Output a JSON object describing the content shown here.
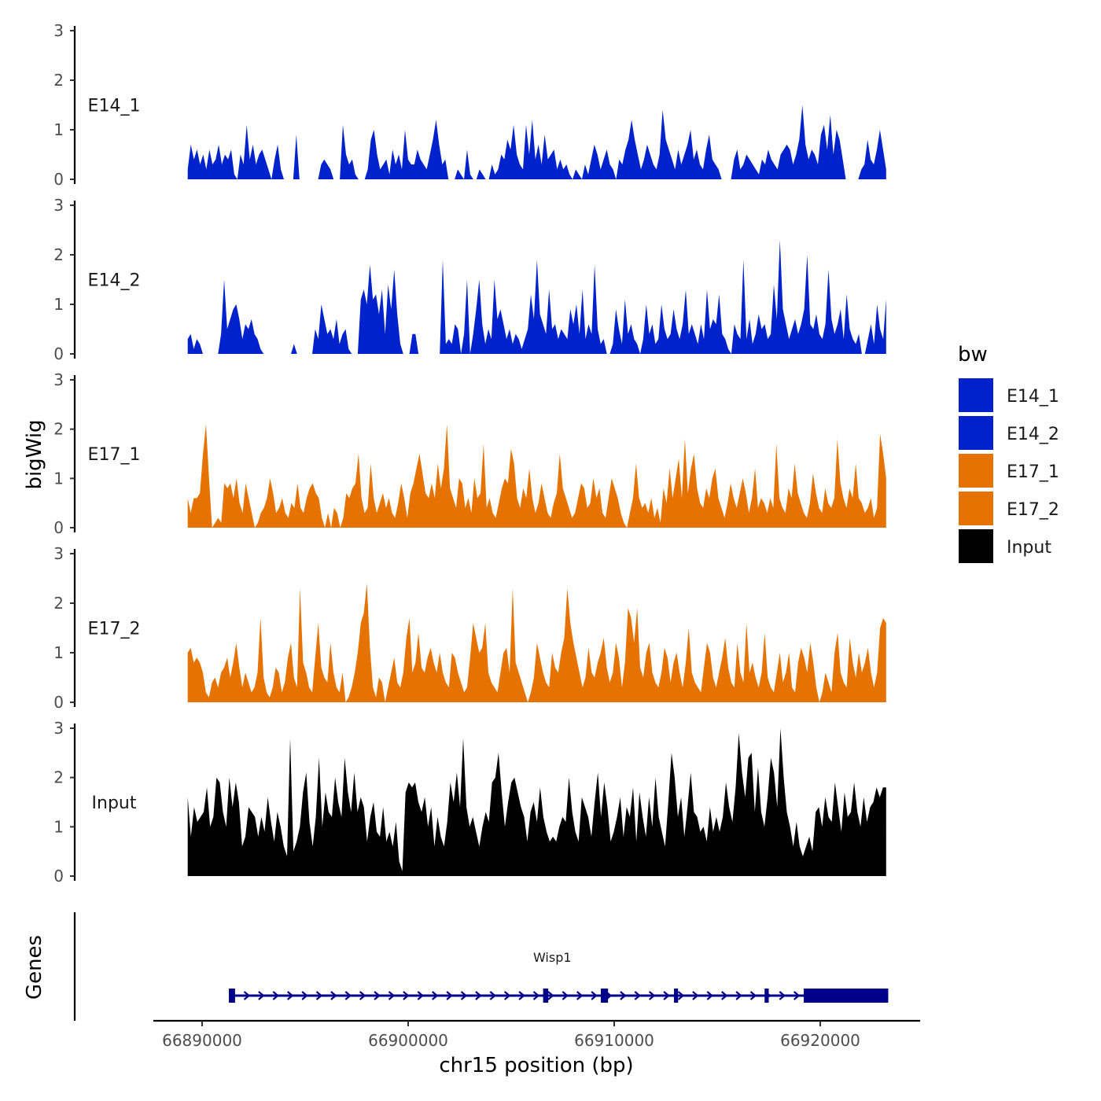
{
  "chart_data": {
    "type": "area",
    "title": "",
    "ylabel": "bigWig",
    "xlabel": "chr15 position (bp)",
    "genes_label": "Genes",
    "xlim": [
      66886500,
      66925000
    ],
    "ylim": [
      0,
      3
    ],
    "x_ticks": [
      66890000,
      66900000,
      66910000,
      66920000
    ],
    "x_tick_labels": [
      "66890000",
      "66900000",
      "66910000",
      "66920000"
    ],
    "y_ticks": [
      0,
      1,
      2,
      3
    ],
    "y_tick_labels": [
      "0",
      "1",
      "2",
      "3"
    ],
    "track_range": [
      66889300,
      66923200
    ],
    "legend": {
      "title": "bw",
      "position": "right",
      "entries": [
        {
          "label": "E14_1",
          "color": "#0022cc"
        },
        {
          "label": "E14_2",
          "color": "#0022cc"
        },
        {
          "label": "E17_1",
          "color": "#e67300"
        },
        {
          "label": "E17_2",
          "color": "#e67300"
        },
        {
          "label": "Input",
          "color": "#000000"
        }
      ]
    },
    "tracks": [
      {
        "name": "E14_1",
        "color": "#0022cc",
        "values": [
          0.2,
          0.7,
          0.4,
          0.6,
          0.3,
          0.5,
          0.2,
          0.6,
          0.3,
          0.4,
          0.7,
          0.3,
          0.5,
          0.4,
          0.6,
          0.1,
          0,
          0.5,
          0.3,
          1.1,
          0.4,
          0.7,
          0.3,
          0.5,
          0.6,
          0.4,
          0.2,
          0,
          0.4,
          0.7,
          0.2,
          0,
          0,
          0,
          0,
          0.9,
          0,
          0,
          0,
          0,
          0,
          0,
          0,
          0.3,
          0.4,
          0.3,
          0.2,
          0,
          0,
          0,
          1.1,
          0.5,
          0.3,
          0.4,
          0.1,
          0,
          0,
          0,
          0.2,
          0.8,
          1.0,
          0.5,
          0.2,
          0.3,
          0.4,
          0.1,
          0.6,
          0.3,
          0.5,
          0.2,
          1.0,
          0.4,
          0.3,
          0.3,
          0.6,
          0.4,
          0.3,
          0.2,
          0.5,
          0.8,
          1.2,
          0.7,
          0.3,
          0.4,
          0,
          0,
          0,
          0.2,
          0.1,
          0,
          0.6,
          0.1,
          0,
          0,
          0.2,
          0.1,
          0,
          0,
          0.3,
          0.1,
          0.2,
          0.5,
          0.4,
          0.8,
          0.6,
          1.1,
          0.5,
          0.3,
          0.2,
          1.1,
          0.5,
          1.2,
          0.4,
          0.7,
          0.3,
          0.9,
          0.4,
          0.5,
          0.6,
          0.2,
          0.4,
          0.2,
          0.3,
          0.1,
          0,
          0.2,
          0.1,
          0,
          0.3,
          0.1,
          0.4,
          0.7,
          0.5,
          0.2,
          0.4,
          0.6,
          0.3,
          0.2,
          0,
          0.4,
          0.3,
          0.6,
          0.8,
          1.2,
          0.8,
          0.5,
          0.2,
          0.4,
          0.7,
          0.5,
          0.3,
          0.2,
          0.5,
          1.4,
          0.8,
          0.6,
          0.4,
          0.2,
          0.6,
          0.3,
          0.5,
          0.7,
          1.0,
          0.4,
          0.6,
          0.3,
          0.2,
          0.6,
          0.9,
          0.4,
          0.3,
          0.2,
          0,
          0,
          0,
          0,
          0.4,
          0.6,
          0.2,
          0.3,
          0.5,
          0.4,
          0.3,
          0.2,
          0.1,
          0.4,
          0.3,
          0.6,
          0.4,
          0.3,
          0.2,
          0.5,
          0.6,
          0.7,
          0.6,
          0.3,
          0.5,
          0.8,
          1.5,
          0.7,
          0.4,
          0.6,
          0.5,
          0.3,
          0.9,
          1.1,
          0.6,
          1.3,
          0.5,
          1.0,
          0.8,
          0.4,
          0,
          0,
          0,
          0,
          0,
          0.2,
          0.3,
          0.8,
          0.4,
          0.3,
          0.6,
          1.0,
          0.6,
          0.2
        ]
      },
      {
        "name": "E14_2",
        "color": "#0022cc",
        "values": [
          0.3,
          0.4,
          0.1,
          0.3,
          0.2,
          0,
          0,
          0,
          0,
          0,
          0,
          0.4,
          1.5,
          0.5,
          0.7,
          0.9,
          1.0,
          0.7,
          0.3,
          0.6,
          0.5,
          0.7,
          0.4,
          0.3,
          0.1,
          0,
          0,
          0,
          0,
          0,
          0,
          0,
          0,
          0,
          0,
          0.2,
          0,
          0,
          0,
          0,
          0,
          0,
          0.5,
          0.3,
          1.0,
          0.7,
          0.4,
          0.5,
          0.3,
          0.7,
          0.2,
          0.4,
          0.5,
          0.1,
          0,
          0,
          0,
          1.1,
          1.3,
          1.0,
          1.8,
          1.1,
          1.2,
          0.8,
          1.3,
          0.4,
          1.4,
          0.9,
          1.7,
          0.8,
          0.2,
          0,
          0,
          0,
          0.4,
          0.4,
          0,
          0,
          0,
          0,
          0,
          0,
          0,
          0,
          1.9,
          0.2,
          0.3,
          0.2,
          0.6,
          0.5,
          0,
          0.4,
          1.5,
          0,
          0.4,
          0.9,
          1.5,
          0.6,
          0.2,
          0.5,
          0.3,
          1.5,
          0.7,
          0.9,
          0.6,
          0.3,
          0.5,
          0.2,
          0.4,
          0.3,
          0.1,
          0.3,
          0.5,
          1.2,
          0.7,
          1.9,
          0.8,
          0.6,
          0.4,
          1.3,
          0.5,
          0.6,
          0.3,
          0.5,
          0.4,
          0.3,
          0.9,
          0.6,
          1.0,
          0.4,
          1.3,
          0.3,
          0.6,
          0.4,
          1.8,
          0.5,
          0.2,
          0.3,
          0,
          0,
          0.2,
          0.9,
          0.5,
          0.2,
          1.1,
          0.4,
          0.6,
          0.3,
          0.2,
          0,
          0.3,
          1.0,
          0.4,
          0.6,
          0.2,
          0.3,
          1.0,
          0.5,
          0.3,
          0.4,
          0.9,
          0.5,
          0.3,
          0.6,
          1.3,
          0.4,
          0.6,
          0.4,
          0.2,
          0.6,
          0.3,
          1.3,
          0.5,
          0.7,
          0.6,
          1.2,
          0.4,
          0.3,
          0.1,
          0,
          0.6,
          0.4,
          0.3,
          1.9,
          0.3,
          0.7,
          0.2,
          0.4,
          0.8,
          0.5,
          0.6,
          0.3,
          0.4,
          1.4,
          0.7,
          2.3,
          0.9,
          0.6,
          0.3,
          0.5,
          0.7,
          0.4,
          0.6,
          0.9,
          2.0,
          0.6,
          0.5,
          0.8,
          0.4,
          0.3,
          0.6,
          1.7,
          0.7,
          0.4,
          0.6,
          0.9,
          0.3,
          1.2,
          0.5,
          0.3,
          0.2,
          0.4,
          0,
          0,
          0.3,
          0.6,
          0.2,
          1.0,
          0.5,
          0.3,
          1.1
        ]
      },
      {
        "name": "E17_1",
        "color": "#e67300",
        "values": [
          0.6,
          0.3,
          0.6,
          0.6,
          0.7,
          1.5,
          2.1,
          1.0,
          0,
          0.1,
          0.2,
          0.1,
          0.9,
          0.8,
          0.9,
          0.6,
          1.0,
          0.5,
          0.3,
          0.9,
          0.6,
          0.3,
          0,
          0.1,
          0.3,
          0.4,
          0.6,
          1.0,
          0.7,
          0.3,
          0.4,
          0.6,
          0.3,
          0.2,
          0.5,
          0.4,
          0.9,
          0.4,
          0.3,
          0.6,
          0.8,
          0.9,
          0.7,
          0.6,
          0.2,
          0,
          0.3,
          0,
          0.4,
          0.3,
          0,
          0.2,
          0.7,
          0.6,
          0.8,
          0.9,
          1.5,
          0.6,
          0.3,
          0.4,
          1.3,
          0.6,
          0.3,
          0.5,
          0.7,
          0.4,
          0.6,
          0.3,
          0.2,
          0.5,
          0.9,
          0.6,
          0.2,
          0.7,
          0.9,
          1.2,
          1.5,
          1.1,
          0.7,
          0.6,
          0.9,
          0.6,
          1.3,
          0.8,
          1.2,
          2.1,
          0.8,
          0.6,
          0.4,
          1.0,
          0.9,
          0.4,
          0.6,
          0.3,
          1.0,
          0.6,
          0.7,
          1.7,
          0.4,
          0.6,
          0.3,
          0.2,
          0.5,
          0.8,
          1.0,
          0.9,
          1.6,
          1.3,
          0.6,
          0.4,
          0.8,
          0.6,
          1.2,
          0.6,
          0.3,
          0.5,
          0.9,
          0.6,
          0.3,
          0.2,
          0.5,
          0.7,
          1.5,
          0.8,
          0.6,
          0.4,
          0.2,
          0.3,
          0.6,
          0.9,
          0.8,
          0.4,
          0.5,
          1.0,
          0.6,
          0.8,
          0.3,
          0.2,
          0.6,
          1.0,
          0.8,
          0.6,
          0.3,
          0.1,
          0,
          0.3,
          0.6,
          1.3,
          0.6,
          0.4,
          0.5,
          0.3,
          0.6,
          0.2,
          0.4,
          0.1,
          0.8,
          0.5,
          1.2,
          0.6,
          1.0,
          1.4,
          0.6,
          1.8,
          0.7,
          1.2,
          1.5,
          0.8,
          0.5,
          0.4,
          0.8,
          0.6,
          1.0,
          1.2,
          0.6,
          0.4,
          0.2,
          0.5,
          0.9,
          0.6,
          0.4,
          0.7,
          1.0,
          0.7,
          0.3,
          0.6,
          1.2,
          0.4,
          0.6,
          0.5,
          0.3,
          0.6,
          0.4,
          1.7,
          0.6,
          0.4,
          0.3,
          0.8,
          0.6,
          1.3,
          0.7,
          0.5,
          0.3,
          0.2,
          0.5,
          1.1,
          0.7,
          0.4,
          0.3,
          0.8,
          0.5,
          0.4,
          0.6,
          1.8,
          0.9,
          0.6,
          0.4,
          0.8,
          0.6,
          1.3,
          0.6,
          0.5,
          0.3,
          0.4,
          0.6,
          0.2,
          0.4,
          1.9,
          1.5,
          1.0
        ]
      },
      {
        "name": "E17_2",
        "color": "#e67300",
        "values": [
          1.0,
          1.1,
          0.8,
          0.9,
          0.8,
          0.6,
          0.2,
          0.1,
          0.4,
          0.5,
          0.3,
          0.6,
          0.7,
          0.9,
          0.5,
          0.8,
          1.2,
          0.7,
          0.3,
          0.6,
          0.4,
          0.2,
          0.3,
          0.6,
          1.7,
          0.5,
          0.2,
          0.1,
          0.3,
          0.7,
          0.6,
          0.2,
          0.4,
          0.9,
          1.2,
          0.5,
          0.3,
          2.3,
          0.8,
          0.6,
          0.3,
          0.2,
          0.9,
          1.6,
          0.7,
          0.5,
          0.4,
          1.2,
          0.6,
          0.3,
          0.2,
          0.6,
          0,
          0.1,
          0.3,
          0.6,
          1.0,
          1.6,
          1.8,
          2.4,
          1.1,
          0.3,
          0.1,
          0.5,
          0.4,
          0,
          0.3,
          0.6,
          0.9,
          0.4,
          0.3,
          0.6,
          1.3,
          1.7,
          0.6,
          0.8,
          1.4,
          0.7,
          0.6,
          0.9,
          1.1,
          0.8,
          0.6,
          1.0,
          0.6,
          0.4,
          0.3,
          1.0,
          0.9,
          0.6,
          0.4,
          0.2,
          0.3,
          0.9,
          1.6,
          1.3,
          1.0,
          1.1,
          1.6,
          0.6,
          0.4,
          0.3,
          0.2,
          0.6,
          1.0,
          1.1,
          0.6,
          2.3,
          0.8,
          0.6,
          0.4,
          0.2,
          0,
          0.2,
          0.5,
          1.2,
          0.9,
          0.6,
          0.4,
          0.3,
          1.0,
          0.7,
          0.6,
          1.0,
          1.3,
          2.3,
          1.6,
          1.2,
          0.9,
          0.6,
          0.3,
          0.5,
          1.1,
          0.6,
          0.5,
          0.8,
          1.0,
          1.3,
          0.7,
          0.4,
          0.6,
          1.2,
          0.9,
          0.3,
          0.8,
          1.9,
          1.7,
          1.2,
          1.9,
          0.7,
          0.5,
          1.0,
          1.2,
          0.6,
          0.4,
          0.3,
          0.6,
          1.1,
          0.9,
          0.4,
          0.8,
          1.0,
          0.6,
          0.3,
          0.8,
          1.5,
          0.6,
          0.4,
          0.3,
          0.2,
          0.7,
          1.2,
          1.0,
          0.5,
          0.3,
          0.6,
          0.9,
          1.3,
          0.7,
          0.4,
          0.3,
          1.2,
          0.6,
          0.4,
          1.6,
          0.6,
          0.8,
          0.5,
          0.3,
          0.6,
          1.4,
          0.5,
          0.3,
          0.2,
          0.6,
          1.0,
          0.4,
          0.6,
          1.0,
          0.3,
          0.2,
          0.8,
          1.1,
          0.9,
          0.6,
          1.2,
          0.8,
          0.3,
          0,
          0.2,
          0.6,
          0.4,
          0.2,
          1.0,
          1.4,
          0.6,
          0.4,
          0.3,
          1.3,
          0.8,
          0.5,
          1.0,
          0.6,
          0.8,
          1.1,
          0.6,
          0.3,
          0.6,
          1.5,
          1.7,
          1.6
        ]
      },
      {
        "name": "Input",
        "color": "#000000",
        "values": [
          1.6,
          0.8,
          1.4,
          1.1,
          1.2,
          1.3,
          1.8,
          1.0,
          1.2,
          2.0,
          1.9,
          1.3,
          1.0,
          2.0,
          1.4,
          1.9,
          1.5,
          0.6,
          0.8,
          1.4,
          1.3,
          1.2,
          0.8,
          1.2,
          0.9,
          1.6,
          1.1,
          0.7,
          1.3,
          1.0,
          0.6,
          0.4,
          2.8,
          0.5,
          0.7,
          1.0,
          1.7,
          2.1,
          1.1,
          0.6,
          1.2,
          2.4,
          1.0,
          1.7,
          1.3,
          1.2,
          2.0,
          1.5,
          1.2,
          2.4,
          1.7,
          1.3,
          2.1,
          1.3,
          1.6,
          1.4,
          0.7,
          1.2,
          1.5,
          0.9,
          0.8,
          1.4,
          0.7,
          0.9,
          0.6,
          1.1,
          0.3,
          0.1,
          1.7,
          1.9,
          1.8,
          1.9,
          1.5,
          1.3,
          1.6,
          1.0,
          1.4,
          0.6,
          1.2,
          0.8,
          0.6,
          1.1,
          1.9,
          1.5,
          2.1,
          1.4,
          2.8,
          1.4,
          1.0,
          1.2,
          0.9,
          0.6,
          1.0,
          1.3,
          1.1,
          1.9,
          2.0,
          2.5,
          1.7,
          1.0,
          1.5,
          1.9,
          2.0,
          1.7,
          1.4,
          1.2,
          0.7,
          1.3,
          1.5,
          1.1,
          1.8,
          1.2,
          0.9,
          0.7,
          0.8,
          0.7,
          1.0,
          1.2,
          1.1,
          2.0,
          1.3,
          0.9,
          0.7,
          1.6,
          1.4,
          1.2,
          0.8,
          1.5,
          2.1,
          1.2,
          1.9,
          1.4,
          0.7,
          0.9,
          1.2,
          1.6,
          0.8,
          1.4,
          1.2,
          1.8,
          0.7,
          1.7,
          1.2,
          0.8,
          1.6,
          1.0,
          2.0,
          1.2,
          0.9,
          0.6,
          1.5,
          2.5,
          2.0,
          1.2,
          1.6,
          0.8,
          1.4,
          2.1,
          1.3,
          1.2,
          0.9,
          1.0,
          0.7,
          1.4,
          0.9,
          1.2,
          0.9,
          1.2,
          1.9,
          1.4,
          1.1,
          1.8,
          2.9,
          2.1,
          1.6,
          2.4,
          2.5,
          1.3,
          2.2,
          1.3,
          1.0,
          1.6,
          2.4,
          2.1,
          1.4,
          3.0,
          2.0,
          1.3,
          1.0,
          0.6,
          1.1,
          0.6,
          0.4,
          0.6,
          0.8,
          0.5,
          1.3,
          1.4,
          1.0,
          1.6,
          1.2,
          1.1,
          1.9,
          1.4,
          0.9,
          1.7,
          1.2,
          1.3,
          1.9,
          1.3,
          1.0,
          1.6,
          1.1,
          1.4,
          1.5,
          1.8,
          1.6,
          1.8,
          1.8
        ]
      }
    ],
    "gene": {
      "name": "Wisp1",
      "strand": "+",
      "start": 66891300,
      "end": 66923300,
      "exons": [
        [
          66891300,
          66891600
        ],
        [
          66906550,
          66906800
        ],
        [
          66909350,
          66909700
        ],
        [
          66912900,
          66913100
        ],
        [
          66917300,
          66917500
        ],
        [
          66919200,
          66923300
        ]
      ],
      "color": "#00008b"
    }
  }
}
